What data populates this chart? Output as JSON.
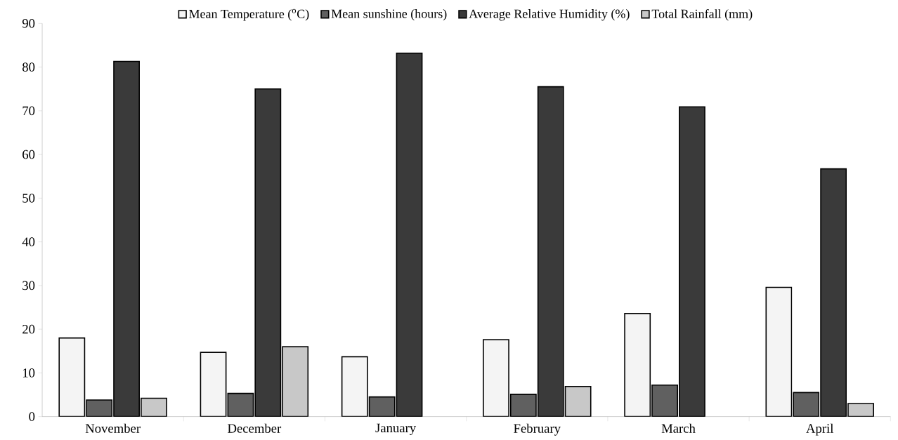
{
  "chart_data": {
    "type": "bar",
    "categories": [
      "November",
      "December",
      "January",
      "February",
      "March",
      "April"
    ],
    "series": [
      {
        "name": "Mean Temperature ($^{o}$C)",
        "color": "#f4f4f4",
        "values": [
          18.0,
          14.7,
          13.7,
          17.6,
          23.6,
          29.6
        ]
      },
      {
        "name": "Mean sunshine (hours)",
        "color": "#606060",
        "values": [
          3.8,
          5.3,
          4.5,
          5.1,
          7.2,
          5.5
        ]
      },
      {
        "name": "Average Relative Humidity (%)",
        "color": "#3a3a3a",
        "values": [
          81.3,
          75.0,
          83.2,
          75.5,
          70.9,
          56.7
        ]
      },
      {
        "name": "Total Rainfall (mm)",
        "color": "#c8c8c8",
        "values": [
          4.2,
          16.0,
          null,
          6.9,
          null,
          3.0
        ]
      }
    ],
    "ylim": [
      0,
      90
    ],
    "yticks": [
      0,
      10,
      20,
      30,
      40,
      50,
      60,
      70,
      80,
      90
    ],
    "grid": false,
    "legend": "top"
  }
}
